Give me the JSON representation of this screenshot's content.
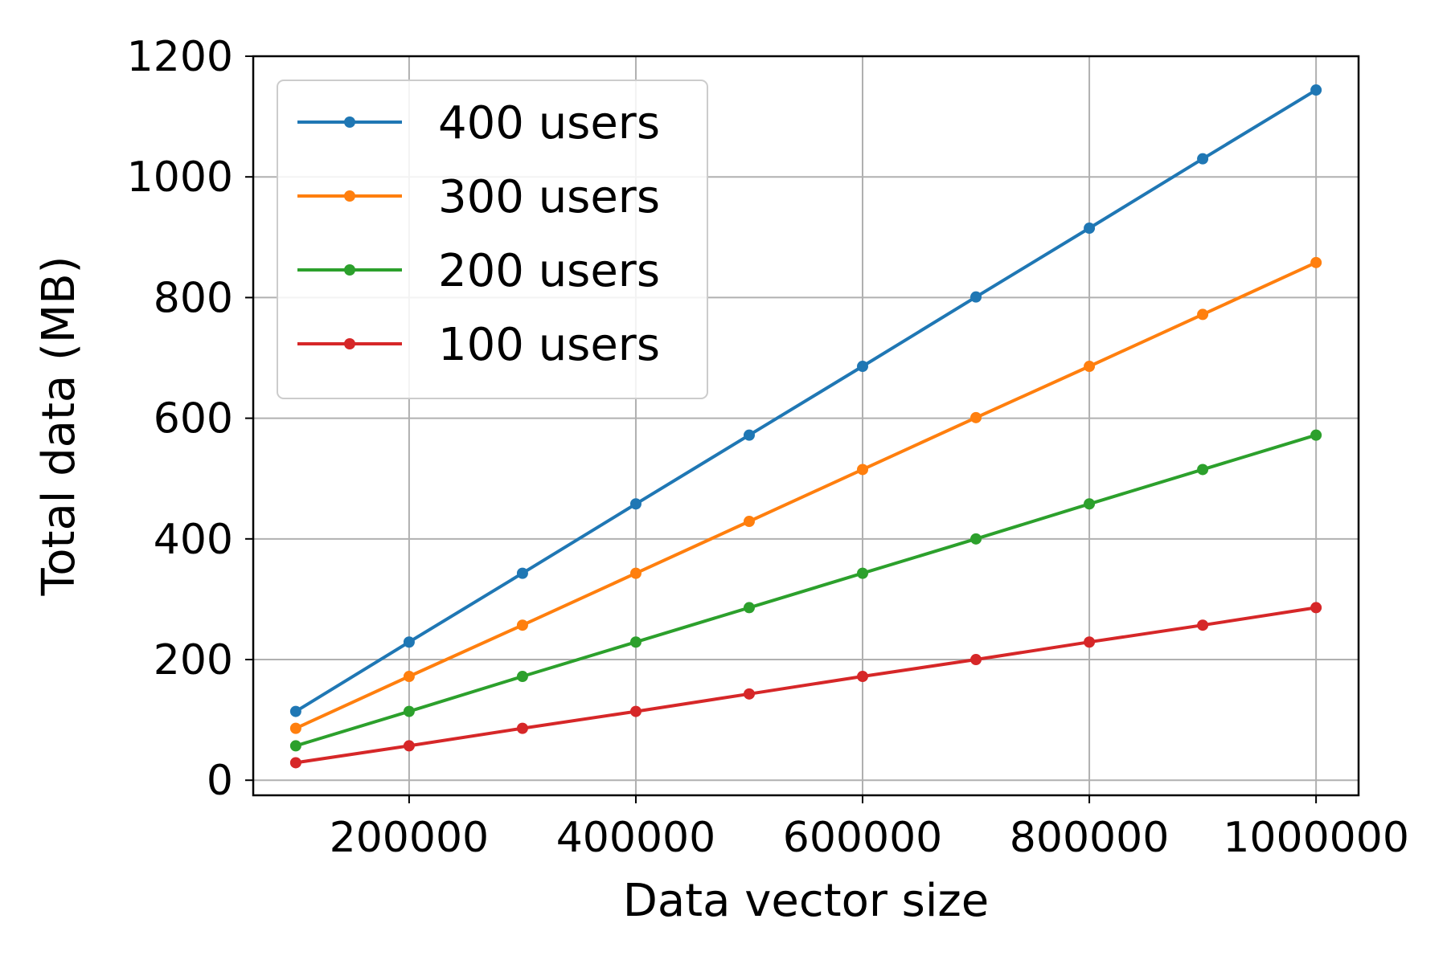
{
  "chart_data": {
    "type": "line",
    "title": "",
    "xlabel": "Data vector size",
    "ylabel": "Total data (MB)",
    "xlim": [
      62500,
      1037500
    ],
    "ylim": [
      -25,
      1200
    ],
    "x_ticks": [
      200000,
      400000,
      600000,
      800000,
      1000000
    ],
    "x_tick_labels": [
      "200000",
      "400000",
      "600000",
      "800000",
      "1000000"
    ],
    "y_ticks": [
      0,
      200,
      400,
      600,
      800,
      1000,
      1200
    ],
    "y_tick_labels": [
      "0",
      "200",
      "400",
      "600",
      "800",
      "1000",
      "1200"
    ],
    "grid": true,
    "legend_position": "top-left",
    "x": [
      100000,
      200000,
      300000,
      400000,
      500000,
      600000,
      700000,
      800000,
      900000,
      1000000
    ],
    "series": [
      {
        "name": "400 users",
        "color": "#1f77b4",
        "values": [
          114,
          229,
          343,
          458,
          572,
          686,
          801,
          915,
          1030,
          1144
        ]
      },
      {
        "name": "300 users",
        "color": "#ff7f0e",
        "values": [
          86,
          172,
          257,
          343,
          429,
          515,
          601,
          686,
          772,
          858
        ]
      },
      {
        "name": "200 users",
        "color": "#2ca02c",
        "values": [
          57,
          114,
          172,
          229,
          286,
          343,
          400,
          458,
          515,
          572
        ]
      },
      {
        "name": "100 users",
        "color": "#d62728",
        "values": [
          29,
          57,
          86,
          114,
          143,
          172,
          200,
          229,
          257,
          286
        ]
      }
    ]
  }
}
